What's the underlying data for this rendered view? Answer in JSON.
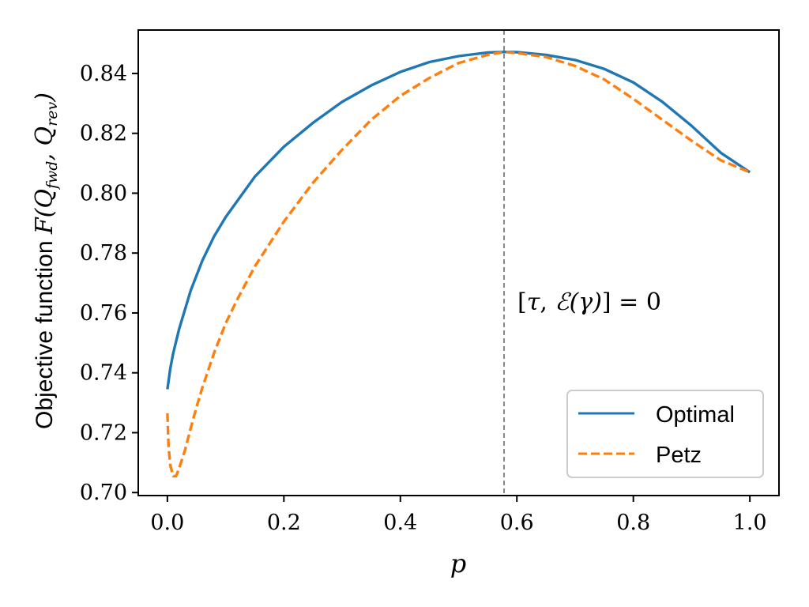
{
  "chart_data": {
    "type": "line",
    "title": "",
    "xlabel": "p",
    "ylabel": {
      "prefix": "Objective function ",
      "F": "F",
      "Q": "Q",
      "sub_fwd": "fwd",
      "sub_rev": "rev"
    },
    "xlim": [
      -0.05,
      1.05
    ],
    "ylim": [
      0.699,
      0.8545
    ],
    "xticks": [
      0.0,
      0.2,
      0.4,
      0.6,
      0.8,
      1.0
    ],
    "xtick_labels": [
      "0.0",
      "0.2",
      "0.4",
      "0.6",
      "0.8",
      "1.0"
    ],
    "yticks": [
      0.7,
      0.72,
      0.74,
      0.76,
      0.78,
      0.8,
      0.82,
      0.84
    ],
    "ytick_labels": [
      "0.70",
      "0.72",
      "0.74",
      "0.76",
      "0.78",
      "0.80",
      "0.82",
      "0.84"
    ],
    "grid": false,
    "legend_position": "bottom-right",
    "vline": {
      "x": 0.578,
      "color": "#888888",
      "label": {
        "open": "[",
        "tau": "τ",
        "comma": ", ",
        "E": "ℰ",
        "gamma_part": "(γ)",
        "close": "] = 0"
      }
    },
    "series": [
      {
        "name": "Optimal",
        "color": "#1f77b4",
        "style": "solid",
        "x": [
          0.0,
          0.005,
          0.01,
          0.02,
          0.04,
          0.06,
          0.08,
          0.1,
          0.15,
          0.2,
          0.25,
          0.3,
          0.35,
          0.4,
          0.45,
          0.5,
          0.55,
          0.578,
          0.6,
          0.65,
          0.7,
          0.75,
          0.8,
          0.85,
          0.9,
          0.95,
          1.0
        ],
        "y": [
          0.7345,
          0.7415,
          0.7465,
          0.7545,
          0.7675,
          0.7775,
          0.7855,
          0.792,
          0.8055,
          0.8155,
          0.8235,
          0.8305,
          0.836,
          0.8405,
          0.8438,
          0.8458,
          0.847,
          0.8472,
          0.8471,
          0.8462,
          0.8445,
          0.8415,
          0.837,
          0.8305,
          0.8225,
          0.8135,
          0.807
        ]
      },
      {
        "name": "Petz",
        "color": "#ff7f0e",
        "style": "dashed",
        "x": [
          0.0,
          0.002,
          0.005,
          0.01,
          0.015,
          0.02,
          0.03,
          0.04,
          0.05,
          0.06,
          0.08,
          0.1,
          0.12,
          0.15,
          0.2,
          0.25,
          0.3,
          0.35,
          0.4,
          0.45,
          0.5,
          0.55,
          0.578,
          0.6,
          0.65,
          0.7,
          0.75,
          0.8,
          0.85,
          0.9,
          0.95,
          1.0
        ],
        "y": [
          0.7265,
          0.7155,
          0.709,
          0.7055,
          0.7055,
          0.708,
          0.714,
          0.7215,
          0.7285,
          0.735,
          0.7465,
          0.7565,
          0.7645,
          0.7755,
          0.7905,
          0.8035,
          0.8145,
          0.8245,
          0.8325,
          0.8385,
          0.8435,
          0.8462,
          0.8472,
          0.8468,
          0.8455,
          0.8425,
          0.838,
          0.8315,
          0.8245,
          0.8175,
          0.811,
          0.807
        ]
      }
    ]
  }
}
